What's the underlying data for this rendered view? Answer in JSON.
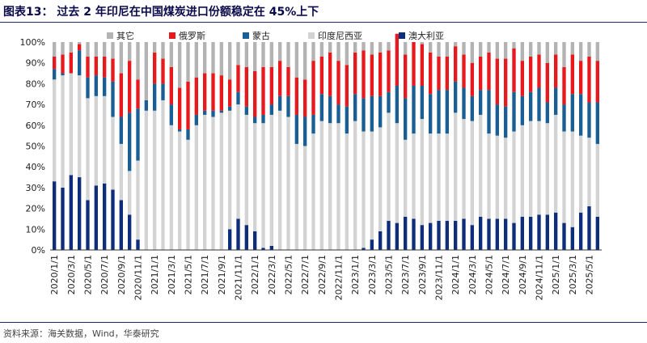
{
  "title": "图表13：  过去 2 年印尼在中国煤炭进口份额稳定在 45%上下",
  "source": "资料来源：海关数据，Wind，华泰研究",
  "colors": {
    "其它": "#b3b3b3",
    "俄罗斯": "#e8191d",
    "蒙古": "#1a5e96",
    "印度尼西亚": "#d3d3d3",
    "澳大利亚": "#0e2d7a",
    "title": "#0a0a4a",
    "rule": "#1f2d6b"
  },
  "chart_data": {
    "type": "bar",
    "stacked": true,
    "percent": true,
    "ylim": [
      0,
      100
    ],
    "yticks": [
      "0%",
      "10%",
      "20%",
      "30%",
      "40%",
      "50%",
      "60%",
      "70%",
      "80%",
      "90%",
      "100%"
    ],
    "legend_position": "top",
    "categories": [
      "2020/1/1",
      "2020/2/1",
      "2020/3/1",
      "2020/4/1",
      "2020/5/1",
      "2020/6/1",
      "2020/7/1",
      "2020/8/1",
      "2020/9/1",
      "2020/10/1",
      "2020/11/1",
      "2020/12/1",
      "2021/1/1",
      "2021/2/1",
      "2021/3/1",
      "2021/4/1",
      "2021/5/1",
      "2021/6/1",
      "2021/7/1",
      "2021/8/1",
      "2021/9/1",
      "2021/10/1",
      "2021/11/1",
      "2021/12/1",
      "2022/1/1",
      "2022/2/1",
      "2022/3/1",
      "2022/4/1",
      "2022/5/1",
      "2022/6/1",
      "2022/7/1",
      "2022/8/1",
      "2022/9/1",
      "2022/10/1",
      "2022/11/1",
      "2022/12/1",
      "2023/1/1",
      "2023/2/1",
      "2023/3/1",
      "2023/4/1",
      "2023/5/1",
      "2023/6/1",
      "2023/7/1",
      "2023/8/1",
      "2023/9/1",
      "2023/10/1",
      "2023/11/1",
      "2023/12/1",
      "2024/1/1",
      "2024/2/1",
      "2024/3/1",
      "2024/4/1",
      "2024/5/1",
      "2024/6/1",
      "2024/7/1",
      "2024/8/1",
      "2024/9/1",
      "2024/10/1",
      "2024/11/1",
      "2024/12/1",
      "2025/1/1",
      "2025/2/1",
      "2025/3/1",
      "2025/4/1",
      "2025/5/1",
      "2025/6/1"
    ],
    "labeled_ticks": [
      "2020/1/1",
      "2020/3/1",
      "2020/5/1",
      "2020/7/1",
      "2020/9/1",
      "2020/11/1",
      "2021/1/1",
      "2021/3/1",
      "2021/5/1",
      "2021/7/1",
      "2021/9/1",
      "2021/11/1",
      "2022/1/1",
      "2022/3/1",
      "2022/5/1",
      "2022/7/1",
      "2022/9/1",
      "2022/11/1",
      "2023/1/1",
      "2023/3/1",
      "2023/5/1",
      "2023/7/1",
      "2023/9/1",
      "2023/11/1",
      "2024/1/1",
      "2024/3/1",
      "2024/5/1",
      "2024/7/1",
      "2024/9/1",
      "2024/11/1",
      "2025/1/1",
      "2025/3/1",
      "2025/5/1"
    ],
    "series": [
      {
        "name": "澳大利亚",
        "values": [
          33,
          30,
          36,
          35,
          24,
          31,
          32,
          29,
          24,
          17,
          5,
          0,
          0,
          0,
          0,
          0,
          0,
          0,
          0,
          0,
          0,
          10,
          15,
          12,
          9,
          1,
          2,
          0,
          0,
          0,
          0,
          0,
          0,
          0,
          0,
          0,
          0,
          1,
          5,
          9,
          14,
          13,
          16,
          15,
          12,
          13,
          14,
          14,
          14,
          15,
          12,
          16,
          15,
          15,
          15,
          13,
          16,
          16,
          17,
          17,
          18,
          13,
          11,
          18,
          21,
          16
        ]
      },
      {
        "name": "印度尼西亚",
        "values": [
          49,
          54,
          49,
          49,
          49,
          43,
          42,
          35,
          27,
          21,
          38,
          67,
          67,
          72,
          60,
          57,
          53,
          60,
          65,
          64,
          66,
          57,
          55,
          53,
          52,
          60,
          63,
          67,
          64,
          51,
          50,
          56,
          62,
          61,
          61,
          56,
          62,
          56,
          52,
          50,
          52,
          48,
          37,
          41,
          51,
          43,
          42,
          42,
          52,
          48,
          50,
          49,
          41,
          40,
          39,
          44,
          44,
          46,
          45,
          44,
          47,
          44,
          46,
          37,
          33,
          35
        ]
      },
      {
        "name": "蒙古",
        "values": [
          5,
          1,
          0,
          12,
          10,
          10,
          9,
          17,
          13,
          28,
          25,
          5,
          13,
          8,
          10,
          1,
          5,
          5,
          2,
          3,
          1,
          2,
          6,
          4,
          3,
          4,
          5,
          7,
          10,
          14,
          14,
          9,
          13,
          13,
          9,
          13,
          13,
          16,
          17,
          15,
          10,
          18,
          20,
          23,
          16,
          19,
          21,
          21,
          15,
          15,
          12,
          12,
          21,
          15,
          15,
          19,
          14,
          14,
          16,
          10,
          13,
          13,
          18,
          20,
          17,
          20
        ]
      },
      {
        "name": "俄罗斯",
        "values": [
          6,
          9,
          10,
          3,
          10,
          9,
          10,
          11,
          21,
          25,
          14,
          0,
          15,
          12,
          18,
          20,
          23,
          18,
          18,
          18,
          17,
          13,
          13,
          19,
          22,
          23,
          18,
          17,
          14,
          18,
          18,
          26,
          18,
          21,
          21,
          20,
          20,
          23,
          20,
          21,
          20,
          25,
          21,
          21,
          20,
          20,
          16,
          16,
          17,
          16,
          16,
          16,
          18,
          22,
          23,
          21,
          17,
          17,
          16,
          19,
          16,
          18,
          19,
          16,
          22,
          20
        ]
      }
    ],
    "series_legend_order": [
      "其它",
      "俄罗斯",
      "蒙古",
      "印度尼西亚",
      "澳大利亚"
    ],
    "remainder_series": "其它"
  }
}
